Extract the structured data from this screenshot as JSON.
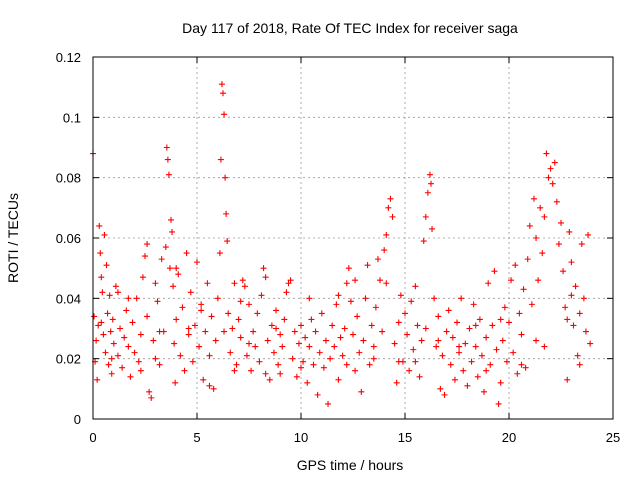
{
  "chart_data": {
    "type": "scatter",
    "title": "Day 117 of 2018, Rate Of TEC Index for receiver saga",
    "xlabel": "GPS time / hours",
    "ylabel": "ROTI / TECUs",
    "xlim": [
      0,
      25
    ],
    "ylim": [
      0,
      0.12
    ],
    "xticks": [
      0,
      5,
      10,
      15,
      20,
      25
    ],
    "yticks": [
      0,
      0.02,
      0.04,
      0.06,
      0.08,
      0.1,
      0.12
    ],
    "xtick_labels": [
      "0",
      "5",
      "10",
      "15",
      "20",
      "25"
    ],
    "ytick_labels": [
      "0",
      "0.02",
      "0.04",
      "0.06",
      "0.08",
      "0.1",
      "0.12"
    ],
    "grid": true,
    "marker": "+",
    "marker_color": "#ff0000",
    "series": [
      {
        "name": "ROTI",
        "points": [
          [
            0.0,
            0.088
          ],
          [
            0.05,
            0.034
          ],
          [
            0.1,
            0.019
          ],
          [
            0.15,
            0.026
          ],
          [
            0.2,
            0.013
          ],
          [
            0.25,
            0.031
          ],
          [
            0.3,
            0.064
          ],
          [
            0.35,
            0.055
          ],
          [
            0.4,
            0.047
          ],
          [
            0.45,
            0.042
          ],
          [
            0.5,
            0.028
          ],
          [
            0.55,
            0.061
          ],
          [
            0.6,
            0.022
          ],
          [
            0.65,
            0.051
          ],
          [
            0.7,
            0.035
          ],
          [
            0.75,
            0.018
          ],
          [
            0.8,
            0.041
          ],
          [
            0.85,
            0.029
          ],
          [
            0.9,
            0.015
          ],
          [
            0.95,
            0.033
          ],
          [
            1.0,
            0.025
          ],
          [
            1.1,
            0.044
          ],
          [
            1.2,
            0.021
          ],
          [
            1.3,
            0.03
          ],
          [
            1.4,
            0.017
          ],
          [
            1.5,
            0.027
          ],
          [
            1.6,
            0.036
          ],
          [
            1.7,
            0.024
          ],
          [
            1.8,
            0.014
          ],
          [
            1.9,
            0.032
          ],
          [
            2.0,
            0.022
          ],
          [
            2.1,
            0.04
          ],
          [
            2.2,
            0.019
          ],
          [
            2.3,
            0.028
          ],
          [
            2.4,
            0.047
          ],
          [
            2.5,
            0.054
          ],
          [
            2.6,
            0.034
          ],
          [
            2.7,
            0.009
          ],
          [
            2.8,
            0.007
          ],
          [
            2.9,
            0.026
          ],
          [
            3.0,
            0.045
          ],
          [
            3.1,
            0.039
          ],
          [
            3.2,
            0.018
          ],
          [
            3.3,
            0.053
          ],
          [
            3.4,
            0.029
          ],
          [
            3.5,
            0.057
          ],
          [
            3.55,
            0.09
          ],
          [
            3.6,
            0.086
          ],
          [
            3.65,
            0.081
          ],
          [
            3.7,
            0.05
          ],
          [
            3.75,
            0.066
          ],
          [
            3.8,
            0.062
          ],
          [
            3.85,
            0.044
          ],
          [
            3.9,
            0.025
          ],
          [
            3.95,
            0.012
          ],
          [
            4.0,
            0.033
          ],
          [
            4.1,
            0.048
          ],
          [
            4.2,
            0.021
          ],
          [
            4.3,
            0.037
          ],
          [
            4.4,
            0.016
          ],
          [
            4.5,
            0.055
          ],
          [
            4.6,
            0.028
          ],
          [
            4.7,
            0.042
          ],
          [
            4.8,
            0.019
          ],
          [
            4.9,
            0.031
          ],
          [
            5.0,
            0.052
          ],
          [
            5.1,
            0.024
          ],
          [
            5.2,
            0.036
          ],
          [
            5.3,
            0.013
          ],
          [
            5.4,
            0.029
          ],
          [
            5.5,
            0.045
          ],
          [
            5.6,
            0.021
          ],
          [
            5.7,
            0.034
          ],
          [
            5.8,
            0.01
          ],
          [
            5.9,
            0.026
          ],
          [
            6.0,
            0.04
          ],
          [
            6.1,
            0.055
          ],
          [
            6.15,
            0.086
          ],
          [
            6.2,
            0.111
          ],
          [
            6.25,
            0.108
          ],
          [
            6.3,
            0.101
          ],
          [
            6.35,
            0.08
          ],
          [
            6.4,
            0.068
          ],
          [
            6.45,
            0.059
          ],
          [
            6.5,
            0.035
          ],
          [
            6.6,
            0.022
          ],
          [
            6.7,
            0.03
          ],
          [
            6.8,
            0.045
          ],
          [
            6.9,
            0.018
          ],
          [
            7.0,
            0.033
          ],
          [
            7.1,
            0.027
          ],
          [
            7.2,
            0.046
          ],
          [
            7.3,
            0.044
          ],
          [
            7.4,
            0.021
          ],
          [
            7.5,
            0.038
          ],
          [
            7.6,
            0.016
          ],
          [
            7.7,
            0.029
          ],
          [
            7.8,
            0.024
          ],
          [
            7.9,
            0.035
          ],
          [
            8.0,
            0.019
          ],
          [
            8.1,
            0.041
          ],
          [
            8.2,
            0.05
          ],
          [
            8.3,
            0.047
          ],
          [
            8.4,
            0.026
          ],
          [
            8.5,
            0.013
          ],
          [
            8.6,
            0.031
          ],
          [
            8.7,
            0.022
          ],
          [
            8.8,
            0.036
          ],
          [
            8.9,
            0.018
          ],
          [
            9.0,
            0.028
          ],
          [
            9.1,
            0.024
          ],
          [
            9.2,
            0.033
          ],
          [
            9.3,
            0.042
          ],
          [
            9.4,
            0.045
          ],
          [
            9.5,
            0.046
          ],
          [
            9.6,
            0.02
          ],
          [
            9.7,
            0.029
          ],
          [
            9.8,
            0.014
          ],
          [
            9.9,
            0.025
          ],
          [
            10.0,
            0.031
          ],
          [
            10.1,
            0.019
          ],
          [
            10.2,
            0.027
          ],
          [
            10.3,
            0.012
          ],
          [
            10.4,
            0.024
          ],
          [
            10.5,
            0.033
          ],
          [
            10.6,
            0.018
          ],
          [
            10.7,
            0.029
          ],
          [
            10.8,
            0.008
          ],
          [
            10.9,
            0.022
          ],
          [
            11.0,
            0.035
          ],
          [
            11.1,
            0.017
          ],
          [
            11.2,
            0.026
          ],
          [
            11.3,
            0.005
          ],
          [
            11.4,
            0.02
          ],
          [
            11.5,
            0.031
          ],
          [
            11.6,
            0.024
          ],
          [
            11.7,
            0.038
          ],
          [
            11.8,
            0.013
          ],
          [
            11.9,
            0.027
          ],
          [
            12.0,
            0.021
          ],
          [
            12.1,
            0.03
          ],
          [
            12.2,
            0.045
          ],
          [
            12.3,
            0.05
          ],
          [
            12.4,
            0.039
          ],
          [
            12.5,
            0.028
          ],
          [
            12.6,
            0.016
          ],
          [
            12.7,
            0.034
          ],
          [
            12.8,
            0.022
          ],
          [
            12.9,
            0.009
          ],
          [
            13.0,
            0.026
          ],
          [
            13.1,
            0.04
          ],
          [
            13.2,
            0.051
          ],
          [
            13.3,
            0.018
          ],
          [
            13.4,
            0.031
          ],
          [
            13.5,
            0.024
          ],
          [
            13.6,
            0.037
          ],
          [
            13.7,
            0.053
          ],
          [
            13.8,
            0.046
          ],
          [
            13.9,
            0.029
          ],
          [
            14.0,
            0.056
          ],
          [
            14.1,
            0.061
          ],
          [
            14.2,
            0.07
          ],
          [
            14.3,
            0.073
          ],
          [
            14.4,
            0.067
          ],
          [
            14.5,
            0.025
          ],
          [
            14.6,
            0.012
          ],
          [
            14.7,
            0.032
          ],
          [
            14.8,
            0.041
          ],
          [
            14.9,
            0.019
          ],
          [
            15.0,
            0.035
          ],
          [
            15.1,
            0.028
          ],
          [
            15.2,
            0.016
          ],
          [
            15.3,
            0.039
          ],
          [
            15.4,
            0.023
          ],
          [
            15.5,
            0.044
          ],
          [
            15.6,
            0.031
          ],
          [
            15.7,
            0.014
          ],
          [
            15.8,
            0.026
          ],
          [
            15.9,
            0.059
          ],
          [
            16.0,
            0.067
          ],
          [
            16.1,
            0.075
          ],
          [
            16.2,
            0.081
          ],
          [
            16.25,
            0.078
          ],
          [
            16.3,
            0.063
          ],
          [
            16.4,
            0.04
          ],
          [
            16.5,
            0.024
          ],
          [
            16.6,
            0.034
          ],
          [
            16.7,
            0.01
          ],
          [
            16.8,
            0.021
          ],
          [
            16.9,
            0.008
          ],
          [
            17.0,
            0.029
          ],
          [
            17.1,
            0.036
          ],
          [
            17.2,
            0.018
          ],
          [
            17.3,
            0.027
          ],
          [
            17.4,
            0.013
          ],
          [
            17.5,
            0.032
          ],
          [
            17.6,
            0.022
          ],
          [
            17.7,
            0.04
          ],
          [
            17.8,
            0.016
          ],
          [
            17.9,
            0.025
          ],
          [
            18.0,
            0.011
          ],
          [
            18.1,
            0.03
          ],
          [
            18.2,
            0.019
          ],
          [
            18.3,
            0.038
          ],
          [
            18.4,
            0.024
          ],
          [
            18.5,
            0.014
          ],
          [
            18.6,
            0.033
          ],
          [
            18.7,
            0.021
          ],
          [
            18.8,
            0.009
          ],
          [
            18.9,
            0.027
          ],
          [
            19.0,
            0.045
          ],
          [
            19.1,
            0.018
          ],
          [
            19.2,
            0.031
          ],
          [
            19.3,
            0.049
          ],
          [
            19.4,
            0.023
          ],
          [
            19.5,
            0.005
          ],
          [
            19.6,
            0.012
          ],
          [
            19.7,
            0.026
          ],
          [
            19.8,
            0.037
          ],
          [
            19.9,
            0.019
          ],
          [
            20.0,
            0.032
          ],
          [
            20.1,
            0.046
          ],
          [
            20.2,
            0.022
          ],
          [
            20.3,
            0.051
          ],
          [
            20.4,
            0.015
          ],
          [
            20.5,
            0.035
          ],
          [
            20.6,
            0.028
          ],
          [
            20.7,
            0.043
          ],
          [
            20.8,
            0.017
          ],
          [
            20.9,
            0.053
          ],
          [
            21.0,
            0.064
          ],
          [
            21.1,
            0.038
          ],
          [
            21.2,
            0.073
          ],
          [
            21.3,
            0.06
          ],
          [
            21.4,
            0.046
          ],
          [
            21.5,
            0.07
          ],
          [
            21.6,
            0.055
          ],
          [
            21.7,
            0.067
          ],
          [
            21.8,
            0.088
          ],
          [
            21.9,
            0.08
          ],
          [
            22.0,
            0.083
          ],
          [
            22.1,
            0.078
          ],
          [
            22.2,
            0.085
          ],
          [
            22.3,
            0.072
          ],
          [
            22.4,
            0.058
          ],
          [
            22.5,
            0.065
          ],
          [
            22.6,
            0.049
          ],
          [
            22.7,
            0.037
          ],
          [
            22.8,
            0.013
          ],
          [
            22.9,
            0.062
          ],
          [
            23.0,
            0.052
          ],
          [
            23.1,
            0.031
          ],
          [
            23.2,
            0.044
          ],
          [
            23.3,
            0.021
          ],
          [
            23.4,
            0.035
          ],
          [
            23.5,
            0.058
          ],
          [
            23.6,
            0.04
          ],
          [
            23.7,
            0.029
          ],
          [
            23.8,
            0.061
          ],
          [
            23.9,
            0.025
          ],
          [
            1.2,
            0.042
          ],
          [
            2.6,
            0.058
          ],
          [
            4.6,
            0.03
          ],
          [
            6.8,
            0.016
          ],
          [
            8.3,
            0.015
          ],
          [
            10.4,
            0.04
          ],
          [
            12.6,
            0.046
          ],
          [
            14.1,
            0.045
          ],
          [
            15.5,
            0.019
          ],
          [
            17.6,
            0.024
          ],
          [
            19.6,
            0.033
          ],
          [
            21.3,
            0.026
          ],
          [
            22.8,
            0.033
          ],
          [
            0.4,
            0.032
          ],
          [
            1.7,
            0.04
          ],
          [
            3.2,
            0.029
          ],
          [
            5.6,
            0.011
          ],
          [
            7.1,
            0.039
          ],
          [
            9.0,
            0.015
          ],
          [
            11.8,
            0.041
          ],
          [
            13.5,
            0.02
          ],
          [
            16.0,
            0.03
          ],
          [
            18.4,
            0.031
          ],
          [
            20.6,
            0.018
          ],
          [
            23.0,
            0.041
          ],
          [
            0.9,
            0.02
          ],
          [
            2.3,
            0.016
          ],
          [
            4.0,
            0.05
          ],
          [
            6.3,
            0.029
          ],
          [
            8.8,
            0.03
          ],
          [
            10.0,
            0.017
          ],
          [
            12.2,
            0.018
          ],
          [
            14.7,
            0.019
          ],
          [
            16.6,
            0.026
          ],
          [
            18.9,
            0.016
          ],
          [
            21.7,
            0.024
          ],
          [
            23.4,
            0.018
          ],
          [
            3.0,
            0.02
          ],
          [
            5.2,
            0.038
          ],
          [
            7.5,
            0.025
          ]
        ]
      }
    ]
  }
}
